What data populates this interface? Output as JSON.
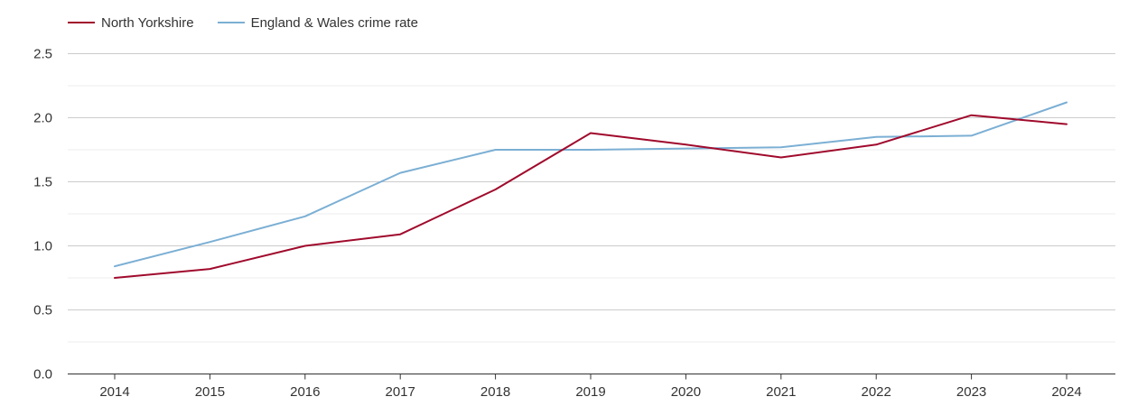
{
  "chart_data": {
    "type": "line",
    "title": "",
    "xlabel": "",
    "ylabel": "",
    "categories": [
      "2014",
      "2015",
      "2016",
      "2017",
      "2018",
      "2019",
      "2020",
      "2021",
      "2022",
      "2023",
      "2024"
    ],
    "series": [
      {
        "name": "North Yorkshire",
        "color": "#a00a2c",
        "values": [
          0.75,
          0.82,
          1.0,
          1.09,
          1.44,
          1.88,
          1.79,
          1.69,
          1.79,
          2.02,
          1.95
        ]
      },
      {
        "name": "England & Wales crime rate",
        "color": "#7bafd4",
        "values": [
          0.84,
          1.03,
          1.23,
          1.57,
          1.75,
          1.75,
          1.76,
          1.77,
          1.85,
          1.86,
          2.12
        ]
      }
    ],
    "ylim": [
      0,
      2.5
    ],
    "yticks": [
      "0.0",
      "0.5",
      "1.0",
      "1.5",
      "2.0",
      "2.5"
    ],
    "grid": true,
    "legend_position": "top-left"
  }
}
